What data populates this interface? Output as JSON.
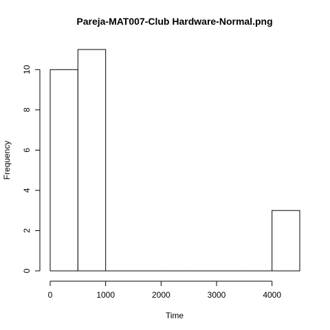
{
  "chart_data": {
    "type": "bar",
    "title": "Pareja-MAT007-Club Hardware-Normal.png",
    "xlabel": "Time",
    "ylabel": "Frequency",
    "bins": [
      {
        "from": 0,
        "to": 500,
        "count": 10
      },
      {
        "from": 500,
        "to": 1000,
        "count": 11
      },
      {
        "from": 1000,
        "to": 1500,
        "count": 0
      },
      {
        "from": 1500,
        "to": 2000,
        "count": 0
      },
      {
        "from": 2000,
        "to": 2500,
        "count": 0
      },
      {
        "from": 2500,
        "to": 3000,
        "count": 0
      },
      {
        "from": 3000,
        "to": 3500,
        "count": 0
      },
      {
        "from": 3500,
        "to": 4000,
        "count": 0
      },
      {
        "from": 4000,
        "to": 4500,
        "count": 3
      }
    ],
    "xlim": [
      0,
      4500
    ],
    "ylim": [
      0,
      11
    ],
    "xticks": [
      "0",
      "1000",
      "2000",
      "3000",
      "4000"
    ],
    "yticks": [
      "0",
      "2",
      "4",
      "6",
      "8",
      "10"
    ],
    "grid": false,
    "bar_fill": "#ffffff",
    "bar_stroke": "#000000"
  }
}
